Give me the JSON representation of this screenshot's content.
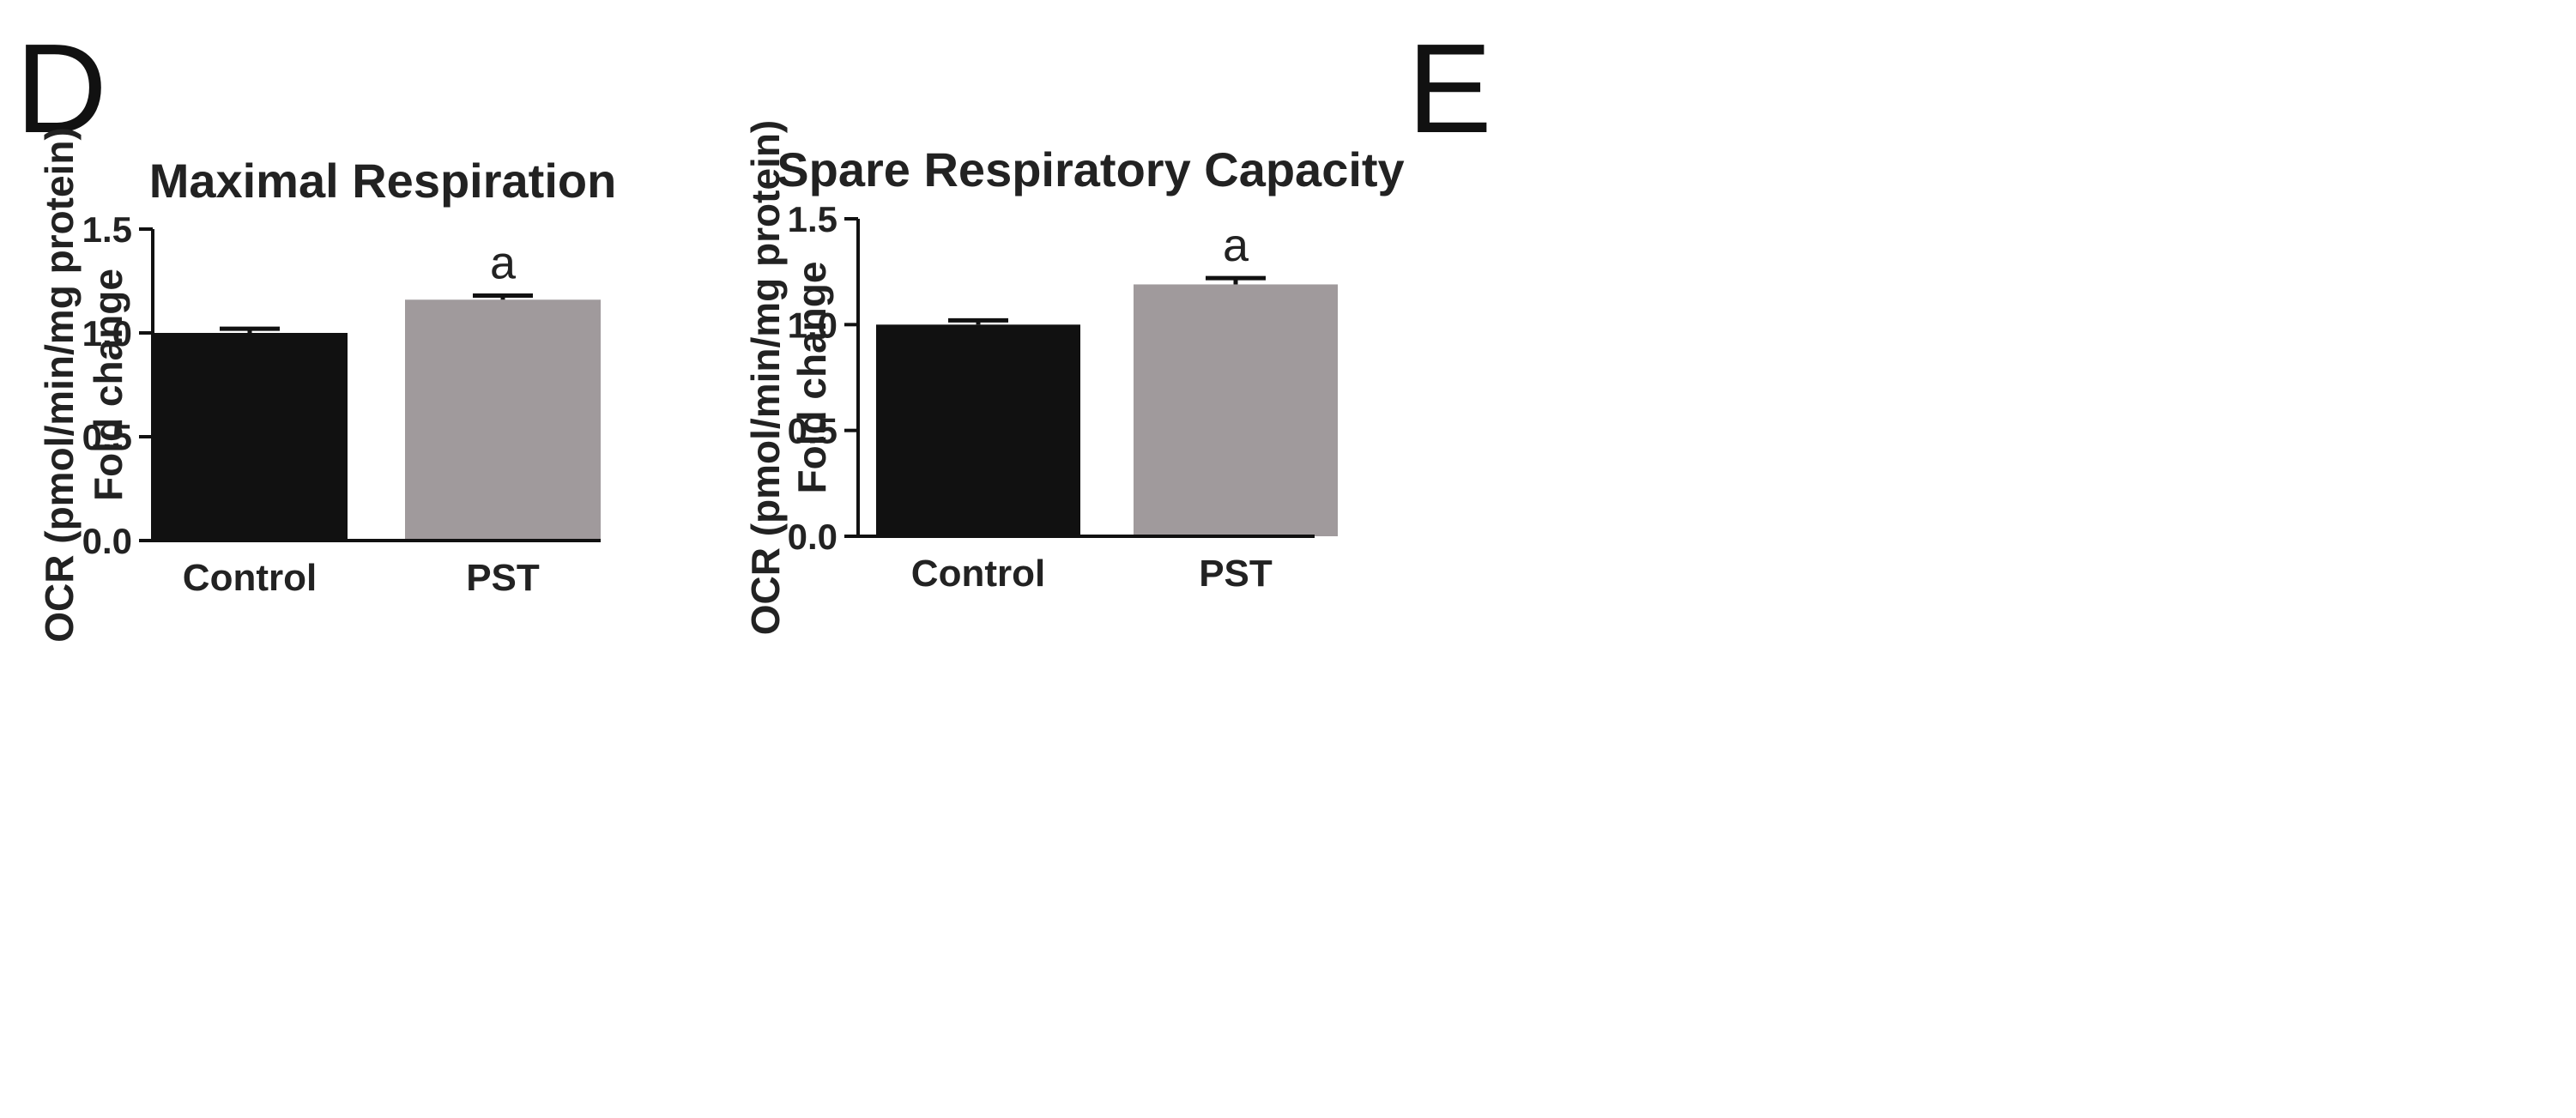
{
  "figure": {
    "panel_labels": [
      "D",
      "E"
    ]
  },
  "chart_data": [
    {
      "panel": "D",
      "type": "bar",
      "title": "Maximal Respiration",
      "ylabel_line1": "OCR (pmol/min/mg protein)",
      "ylabel_line2": "Fold change",
      "xlabel": "",
      "categories": [
        "Control",
        "PST"
      ],
      "values": [
        1.0,
        1.16
      ],
      "errors": [
        0.02,
        0.02
      ],
      "bar_colors": [
        "#111111",
        "#a09a9c"
      ],
      "annotations": [
        "",
        "a"
      ],
      "ylim": [
        0,
        1.5
      ],
      "yticks": [
        0.0,
        0.5,
        1.0,
        1.5
      ],
      "ytick_labels": [
        "0.0",
        "0.5",
        "1.0",
        "1.5"
      ]
    },
    {
      "panel": "E",
      "type": "bar",
      "title": "Spare Respiratory Capacity",
      "ylabel_line1": "OCR (pmol/min/mg protein)",
      "ylabel_line2": "Fold change",
      "xlabel": "",
      "categories": [
        "Control",
        "PST"
      ],
      "values": [
        1.0,
        1.19
      ],
      "errors": [
        0.02,
        0.03
      ],
      "bar_colors": [
        "#111111",
        "#a09a9c"
      ],
      "annotations": [
        "",
        "a"
      ],
      "ylim": [
        0,
        1.5
      ],
      "yticks": [
        0.0,
        0.5,
        1.0,
        1.5
      ],
      "ytick_labels": [
        "0.0",
        "0.5",
        "1.0",
        "1.5"
      ]
    }
  ]
}
